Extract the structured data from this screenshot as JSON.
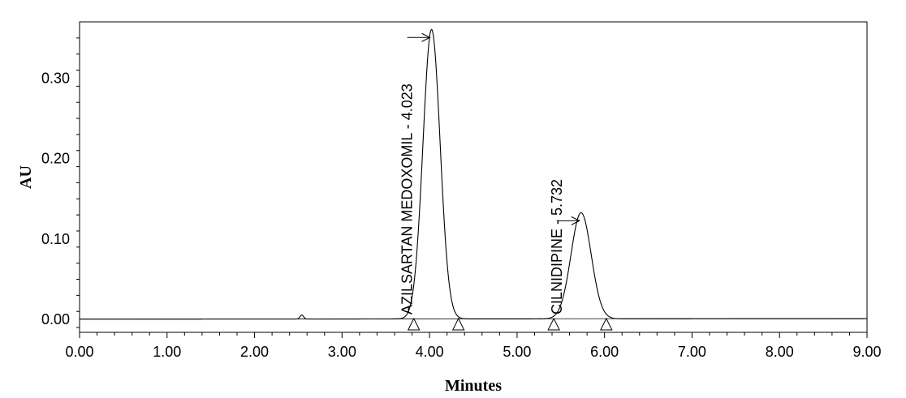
{
  "chart_data": {
    "type": "line",
    "title": "",
    "xlabel": "Minutes",
    "ylabel": "AU",
    "xlim": [
      0,
      9
    ],
    "ylim": [
      -0.016,
      0.37
    ],
    "x_ticks": [
      {
        "value": 0,
        "label": "0.00"
      },
      {
        "value": 1,
        "label": "1.00"
      },
      {
        "value": 2,
        "label": "2.00"
      },
      {
        "value": 3,
        "label": "3.00"
      },
      {
        "value": 4,
        "label": "4.00"
      },
      {
        "value": 5,
        "label": "5.00"
      },
      {
        "value": 6,
        "label": "6.00"
      },
      {
        "value": 7,
        "label": "7.00"
      },
      {
        "value": 8,
        "label": "8.00"
      },
      {
        "value": 9,
        "label": "9.00"
      }
    ],
    "y_ticks": [
      {
        "value": 0.0,
        "label": "0.00"
      },
      {
        "value": 0.1,
        "label": "0.10"
      },
      {
        "value": 0.2,
        "label": "0.20"
      },
      {
        "value": 0.3,
        "label": "0.30"
      }
    ],
    "grid": false,
    "line_color": "#000000",
    "peaks": [
      {
        "name": "AZILSARTAN MEDOXOMIL",
        "retention_time": 4.023,
        "label": "AZILSARTAN MEDOXOMIL - 4.023",
        "height": 0.36,
        "start": 3.82,
        "end": 4.33
      },
      {
        "name": "CILNIDIPINE",
        "retention_time": 5.732,
        "label": "CILNIDIPINE - 5.732",
        "height": 0.132,
        "start": 5.42,
        "end": 6.02
      }
    ],
    "baseline_markers": [
      3.82,
      4.33,
      5.42,
      6.02
    ],
    "minor_features": [
      {
        "x": 2.54,
        "height": 0.005
      }
    ]
  }
}
